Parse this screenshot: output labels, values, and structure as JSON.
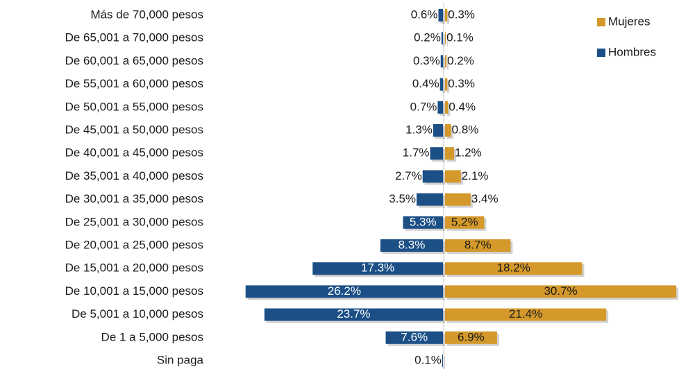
{
  "chart_data": {
    "type": "pyramid",
    "categories": [
      "Más de 70,000 pesos",
      "De 65,001 a 70,000 pesos",
      "De 60,001 a 65,000 pesos",
      "De 55,001 a 60,000 pesos",
      "De 50,001 a 55,000 pesos",
      "De 45,001 a 50,000 pesos",
      "De 40,001 a 45,000 pesos",
      "De 35,001 a 40,000 pesos",
      "De 30,001 a 35,000 pesos",
      "De 25,001 a 30,000 pesos",
      "De 20,001 a 25,000 pesos",
      "De 15,001 a 20,000 pesos",
      "De 10,001 a 15,000 pesos",
      "De 5,001 a 10,000 pesos",
      "De 1 a 5,000 pesos",
      "Sin paga"
    ],
    "series": [
      {
        "name": "Mujeres",
        "color": "#d4992a",
        "side": "right",
        "values": [
          0.3,
          0.1,
          0.2,
          0.3,
          0.4,
          0.8,
          1.2,
          2.1,
          3.4,
          5.2,
          8.7,
          18.2,
          30.7,
          21.4,
          6.9,
          null
        ],
        "value_labels": [
          "0.3%",
          "0.1%",
          "0.2%",
          "0.3%",
          "0.4%",
          "0.8%",
          "1.2%",
          "2.1%",
          "3.4%",
          "5.2%",
          "8.7%",
          "18.2%",
          "30.7%",
          "21.4%",
          "6.9%",
          null
        ]
      },
      {
        "name": "Hombres",
        "color": "#1b4f86",
        "side": "left",
        "values": [
          0.6,
          0.2,
          0.3,
          0.4,
          0.7,
          1.3,
          1.7,
          2.7,
          3.5,
          5.3,
          8.3,
          17.3,
          26.2,
          23.7,
          7.6,
          0.1
        ],
        "value_labels": [
          "0.6%",
          "0.2%",
          "0.3%",
          "0.4%",
          "0.7%",
          "1.3%",
          "1.7%",
          "2.7%",
          "3.5%",
          "5.3%",
          "8.3%",
          "17.3%",
          "26.2%",
          "23.7%",
          "7.6%",
          "0.1%"
        ]
      }
    ],
    "legend": "top-right"
  }
}
